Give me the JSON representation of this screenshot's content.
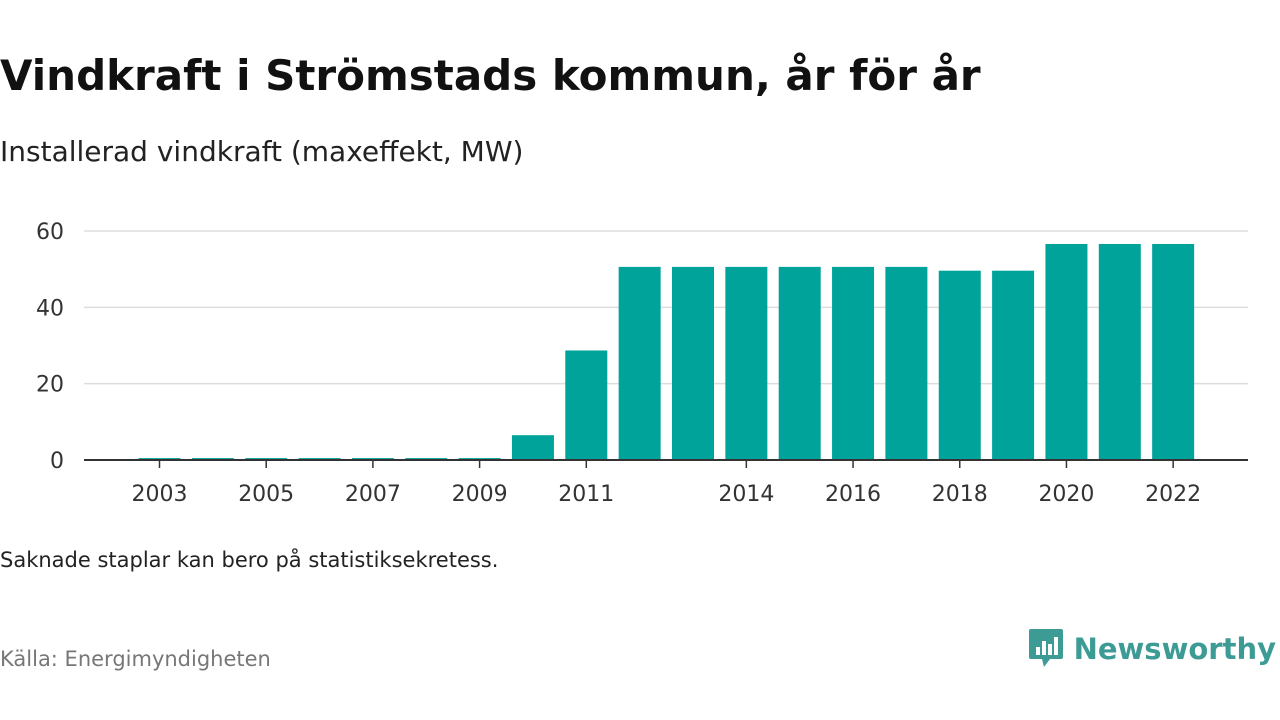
{
  "header": {
    "title": "Vindkraft i Strömstads kommun, år för år",
    "subtitle": "Installerad vindkraft (maxeffekt, MW)"
  },
  "footer": {
    "note": "Saknade staplar kan bero på statistiksekretess.",
    "source": "Källa: Energimyndigheten",
    "brand": "Newsworthy"
  },
  "colors": {
    "bar": "#00a39a",
    "grid": "#dddddd",
    "axis": "#333333",
    "brand": "#3d9b96"
  },
  "chart_data": {
    "type": "bar",
    "categories": [
      "2003",
      "2004",
      "2005",
      "2006",
      "2007",
      "2008",
      "2009",
      "2010",
      "2011",
      "2012",
      "2013",
      "2014",
      "2015",
      "2016",
      "2017",
      "2018",
      "2019",
      "2020",
      "2021",
      "2022"
    ],
    "values": [
      0.5,
      0.5,
      0.5,
      0.5,
      0.5,
      0.5,
      0.5,
      6.5,
      28.7,
      50.6,
      50.6,
      50.6,
      50.6,
      50.6,
      50.6,
      49.6,
      49.6,
      56.6,
      56.6,
      56.6
    ],
    "x_tick_labels": [
      "2003",
      "2005",
      "2007",
      "2009",
      "2011",
      "2014",
      "2016",
      "2018",
      "2020",
      "2022"
    ],
    "y_ticks": [
      0,
      20,
      40,
      60
    ],
    "ylim": [
      0,
      60
    ],
    "grid": true,
    "legend": "none",
    "xlabel": "",
    "ylabel": ""
  }
}
